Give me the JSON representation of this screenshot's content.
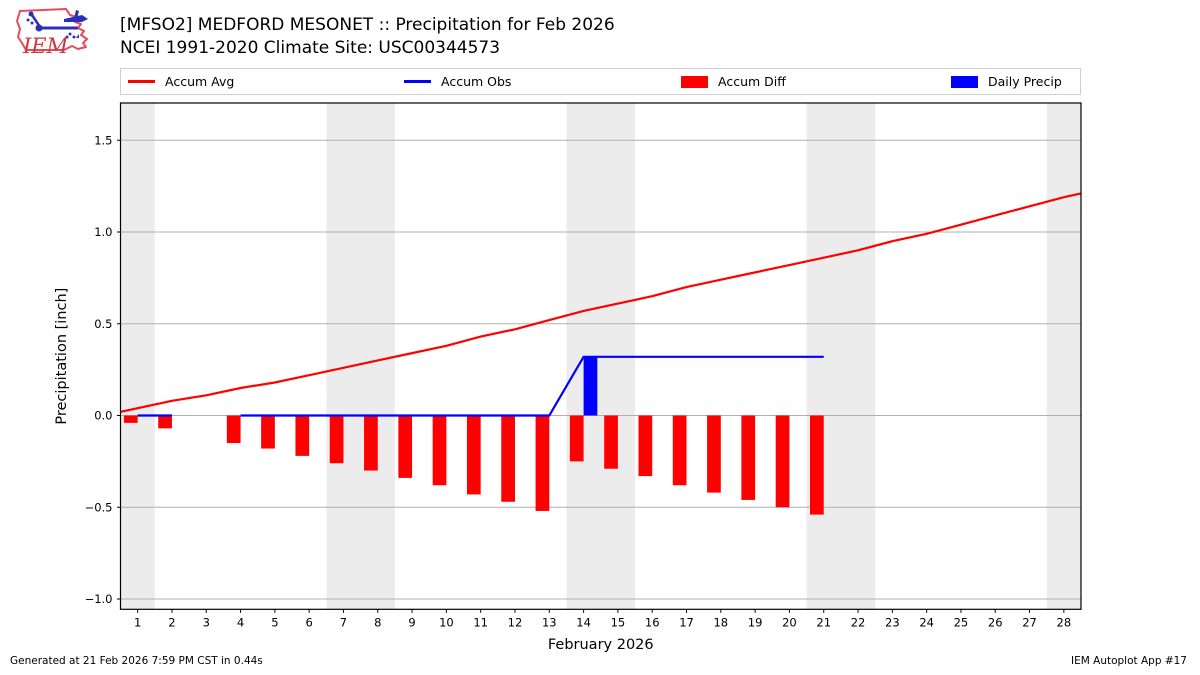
{
  "header": {
    "title_line1": "[MFSO2] MEDFORD MESONET :: Precipitation for Feb 2026",
    "title_line2": "NCEI 1991-2020 Climate Site: USC00344573",
    "logo_text": "IEM"
  },
  "legend": {
    "items": [
      {
        "label": "Accum Avg",
        "swatch": "line-swatch",
        "color": "#ff0000"
      },
      {
        "label": "Accum Obs",
        "swatch": "line-swatch",
        "color": "#0000ff"
      },
      {
        "label": "Accum Diff",
        "swatch": "patch-swatch",
        "color": "#ff0000"
      },
      {
        "label": "Daily Precip",
        "swatch": "patch-swatch",
        "color": "#0000ff"
      }
    ]
  },
  "footer": {
    "left": "Generated at 21 Feb 2026 7:59 PM CST in 0.44s",
    "right": "IEM Autoplot App #17"
  },
  "chart_data": {
    "type": "line+bar",
    "title": "[MFSO2] MEDFORD MESONET :: Precipitation for Feb 2026",
    "subtitle": "NCEI 1991-2020 Climate Site: USC00344573",
    "xlabel": "February 2026",
    "ylabel": "Precipitation [inch]",
    "xlim": [
      0.5,
      28.5
    ],
    "ylim": [
      -1.056,
      1.703
    ],
    "grid": "horizontal",
    "bar_width_days": 0.4,
    "colors": {
      "avg": "#ff0000",
      "obs": "#0000ff",
      "diff": "#ff0000",
      "precip": "#0000ff",
      "weekend_band": "#ececec",
      "gridline": "#b0b0b0",
      "spine": "#000000"
    },
    "weekend_bands": [
      [
        0.5,
        1.5
      ],
      [
        6.5,
        8.5
      ],
      [
        13.5,
        15.5
      ],
      [
        20.5,
        22.5
      ],
      [
        27.5,
        28.5
      ]
    ],
    "xtick_values": [
      1,
      2,
      3,
      4,
      5,
      6,
      7,
      8,
      9,
      10,
      11,
      12,
      13,
      14,
      15,
      16,
      17,
      18,
      19,
      20,
      21,
      22,
      23,
      24,
      25,
      26,
      27,
      28
    ],
    "xtick_labels": [
      "1",
      "2",
      "3",
      "4",
      "5",
      "6",
      "7",
      "8",
      "9",
      "10",
      "11",
      "12",
      "13",
      "14",
      "15",
      "16",
      "17",
      "18",
      "19",
      "20",
      "21",
      "22",
      "23",
      "24",
      "25",
      "26",
      "27",
      "28"
    ],
    "ytick_values": [
      -1.0,
      -0.5,
      0.0,
      0.5,
      1.0,
      1.5
    ],
    "ytick_labels": [
      "−1.0",
      "−0.5",
      "0.0",
      "0.5",
      "1.0",
      "1.5"
    ],
    "series": [
      {
        "name": "Accum Avg",
        "kind": "line",
        "color": "#ff0000",
        "segments": [
          {
            "x": [
              0.5,
              1,
              2,
              3,
              4,
              5,
              6,
              7,
              8,
              9,
              10,
              11,
              12,
              13,
              14,
              15,
              16,
              17,
              18,
              19,
              20,
              21,
              22,
              23,
              24,
              25,
              26,
              27,
              28,
              28.5
            ],
            "y": [
              0.02,
              0.04,
              0.08,
              0.11,
              0.15,
              0.18,
              0.22,
              0.26,
              0.3,
              0.34,
              0.38,
              0.43,
              0.47,
              0.52,
              0.57,
              0.61,
              0.65,
              0.7,
              0.74,
              0.78,
              0.82,
              0.86,
              0.9,
              0.95,
              0.99,
              1.04,
              1.09,
              1.14,
              1.19,
              1.21
            ]
          }
        ]
      },
      {
        "name": "Accum Obs",
        "kind": "line",
        "color": "#0000ff",
        "segments": [
          {
            "x": [
              1,
              2
            ],
            "y": [
              0,
              0
            ]
          },
          {
            "x": [
              4,
              13,
              14,
              21
            ],
            "y": [
              0,
              0,
              0.32,
              0.32
            ]
          }
        ]
      },
      {
        "name": "Accum Diff",
        "kind": "bar",
        "color": "#ff0000",
        "side": "left",
        "x": [
          1,
          2,
          4,
          5,
          6,
          7,
          8,
          9,
          10,
          11,
          12,
          13,
          14,
          15,
          16,
          17,
          18,
          19,
          20,
          21
        ],
        "y": [
          -0.04,
          -0.07,
          -0.15,
          -0.18,
          -0.22,
          -0.26,
          -0.3,
          -0.34,
          -0.38,
          -0.43,
          -0.47,
          -0.52,
          -0.25,
          -0.29,
          -0.33,
          -0.38,
          -0.42,
          -0.46,
          -0.5,
          -0.54
        ]
      },
      {
        "name": "Daily Precip",
        "kind": "bar",
        "color": "#0000ff",
        "side": "right",
        "x": [
          14
        ],
        "y": [
          0.32
        ]
      }
    ]
  }
}
